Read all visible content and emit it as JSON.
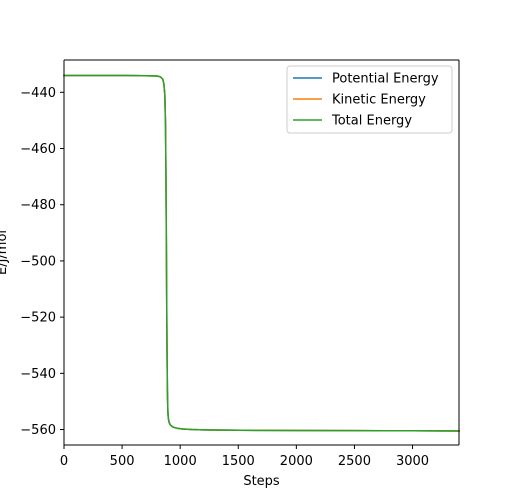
{
  "chart_data": {
    "type": "line",
    "title": "",
    "xlabel": "Steps",
    "ylabel": "E/J/mol",
    "xlim": [
      0,
      3400
    ],
    "ylim": [
      -565.5,
      -428.5
    ],
    "xticks": [
      0,
      500,
      1000,
      1500,
      2000,
      2500,
      3000
    ],
    "yticks": [
      -440,
      -460,
      -480,
      -500,
      -520,
      -540,
      -560
    ],
    "x_tick_labels": [
      "0",
      "500",
      "1000",
      "1500",
      "2000",
      "2500",
      "3000"
    ],
    "y_tick_labels": [
      "−440",
      "−460",
      "−480",
      "−500",
      "−520",
      "−540",
      "−560"
    ],
    "grid": false,
    "legend_position": "top-right",
    "series": [
      {
        "name": "Potential Energy",
        "color": "#1f77b4",
        "x": [
          0,
          500,
          700,
          800,
          830,
          850,
          860,
          868,
          874,
          878,
          882,
          886,
          890,
          894,
          898,
          905,
          915,
          930,
          950,
          980,
          1020,
          1100,
          1200,
          1400,
          1700,
          2000,
          2500,
          3000,
          3400
        ],
        "y": [
          -434.0,
          -434.0,
          -434.1,
          -434.2,
          -434.5,
          -435.3,
          -437.0,
          -441.0,
          -452.0,
          -472.0,
          -500.0,
          -528.0,
          -546.0,
          -553.5,
          -556.0,
          -557.5,
          -558.3,
          -558.9,
          -559.3,
          -559.6,
          -559.8,
          -560.0,
          -560.1,
          -560.2,
          -560.3,
          -560.35,
          -560.4,
          -560.45,
          -560.5
        ]
      },
      {
        "name": "Kinetic Energy",
        "color": "#ff7f0e",
        "x": [
          0,
          500,
          700,
          800,
          830,
          850,
          860,
          868,
          874,
          878,
          882,
          886,
          890,
          894,
          898,
          905,
          915,
          930,
          950,
          980,
          1020,
          1100,
          1200,
          1400,
          1700,
          2000,
          2500,
          3000,
          3400
        ],
        "y": [
          -434.0,
          -434.0,
          -434.1,
          -434.2,
          -434.5,
          -435.3,
          -437.0,
          -441.0,
          -452.0,
          -472.0,
          -500.0,
          -528.0,
          -546.0,
          -553.5,
          -556.0,
          -557.5,
          -558.3,
          -558.9,
          -559.3,
          -559.6,
          -559.8,
          -560.0,
          -560.1,
          -560.2,
          -560.3,
          -560.35,
          -560.4,
          -560.45,
          -560.5
        ]
      },
      {
        "name": "Total Energy",
        "color": "#2ca02c",
        "x": [
          0,
          500,
          700,
          800,
          830,
          850,
          860,
          868,
          874,
          878,
          882,
          886,
          890,
          894,
          898,
          905,
          915,
          930,
          950,
          980,
          1020,
          1100,
          1200,
          1400,
          1700,
          2000,
          2500,
          3000,
          3400
        ],
        "y": [
          -434.0,
          -434.0,
          -434.1,
          -434.2,
          -434.5,
          -435.3,
          -437.0,
          -441.0,
          -452.0,
          -472.0,
          -500.0,
          -528.0,
          -546.0,
          -553.5,
          -556.0,
          -557.5,
          -558.3,
          -558.9,
          -559.3,
          -559.6,
          -559.8,
          -560.0,
          -560.1,
          -560.2,
          -560.3,
          -560.35,
          -560.4,
          -560.45,
          -560.5
        ]
      }
    ]
  }
}
